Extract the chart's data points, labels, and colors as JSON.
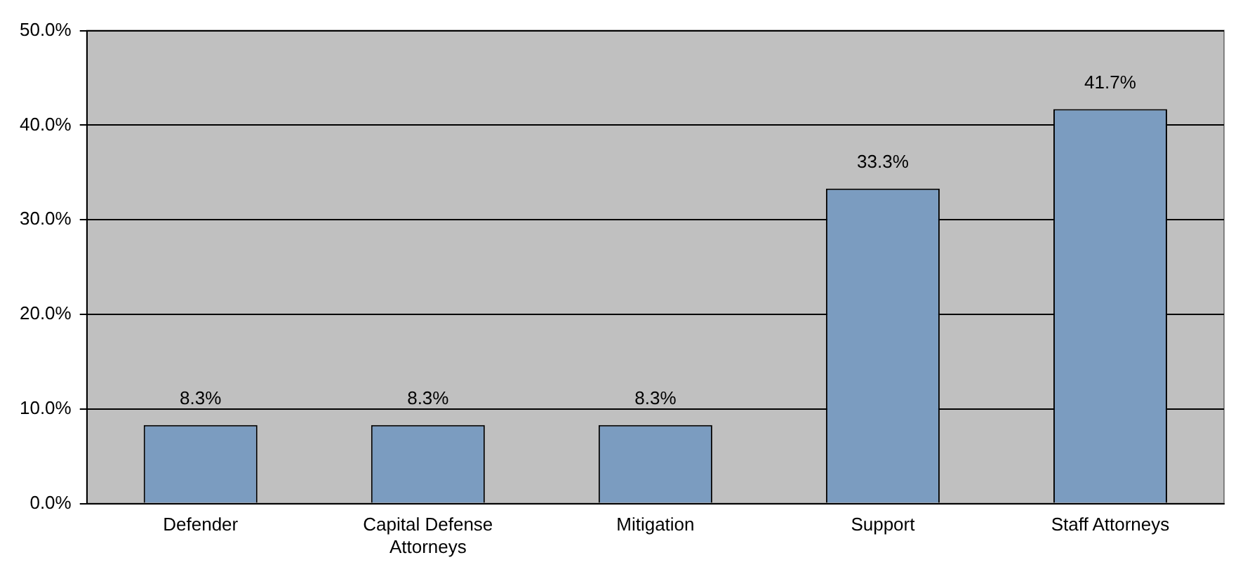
{
  "chart_data": {
    "type": "bar",
    "categories": [
      "Defender",
      "Capital Defense Attorneys",
      "Mitigation",
      "Support",
      "Staff Attorneys"
    ],
    "values": [
      8.3,
      8.3,
      8.3,
      33.3,
      41.7
    ],
    "value_labels": [
      "8.3%",
      "8.3%",
      "8.3%",
      "33.3%",
      "41.7%"
    ],
    "color": "#7b9cc0",
    "ylim": [
      0,
      50
    ],
    "yticks": [
      {
        "value": 0,
        "label": "0.0%"
      },
      {
        "value": 10,
        "label": "10.0%"
      },
      {
        "value": 20,
        "label": "20.0%"
      },
      {
        "value": 30,
        "label": "30.0%"
      },
      {
        "value": 40,
        "label": "40.0%"
      },
      {
        "value": 50,
        "label": "50.0%"
      }
    ],
    "grid": "y",
    "legend": false
  }
}
